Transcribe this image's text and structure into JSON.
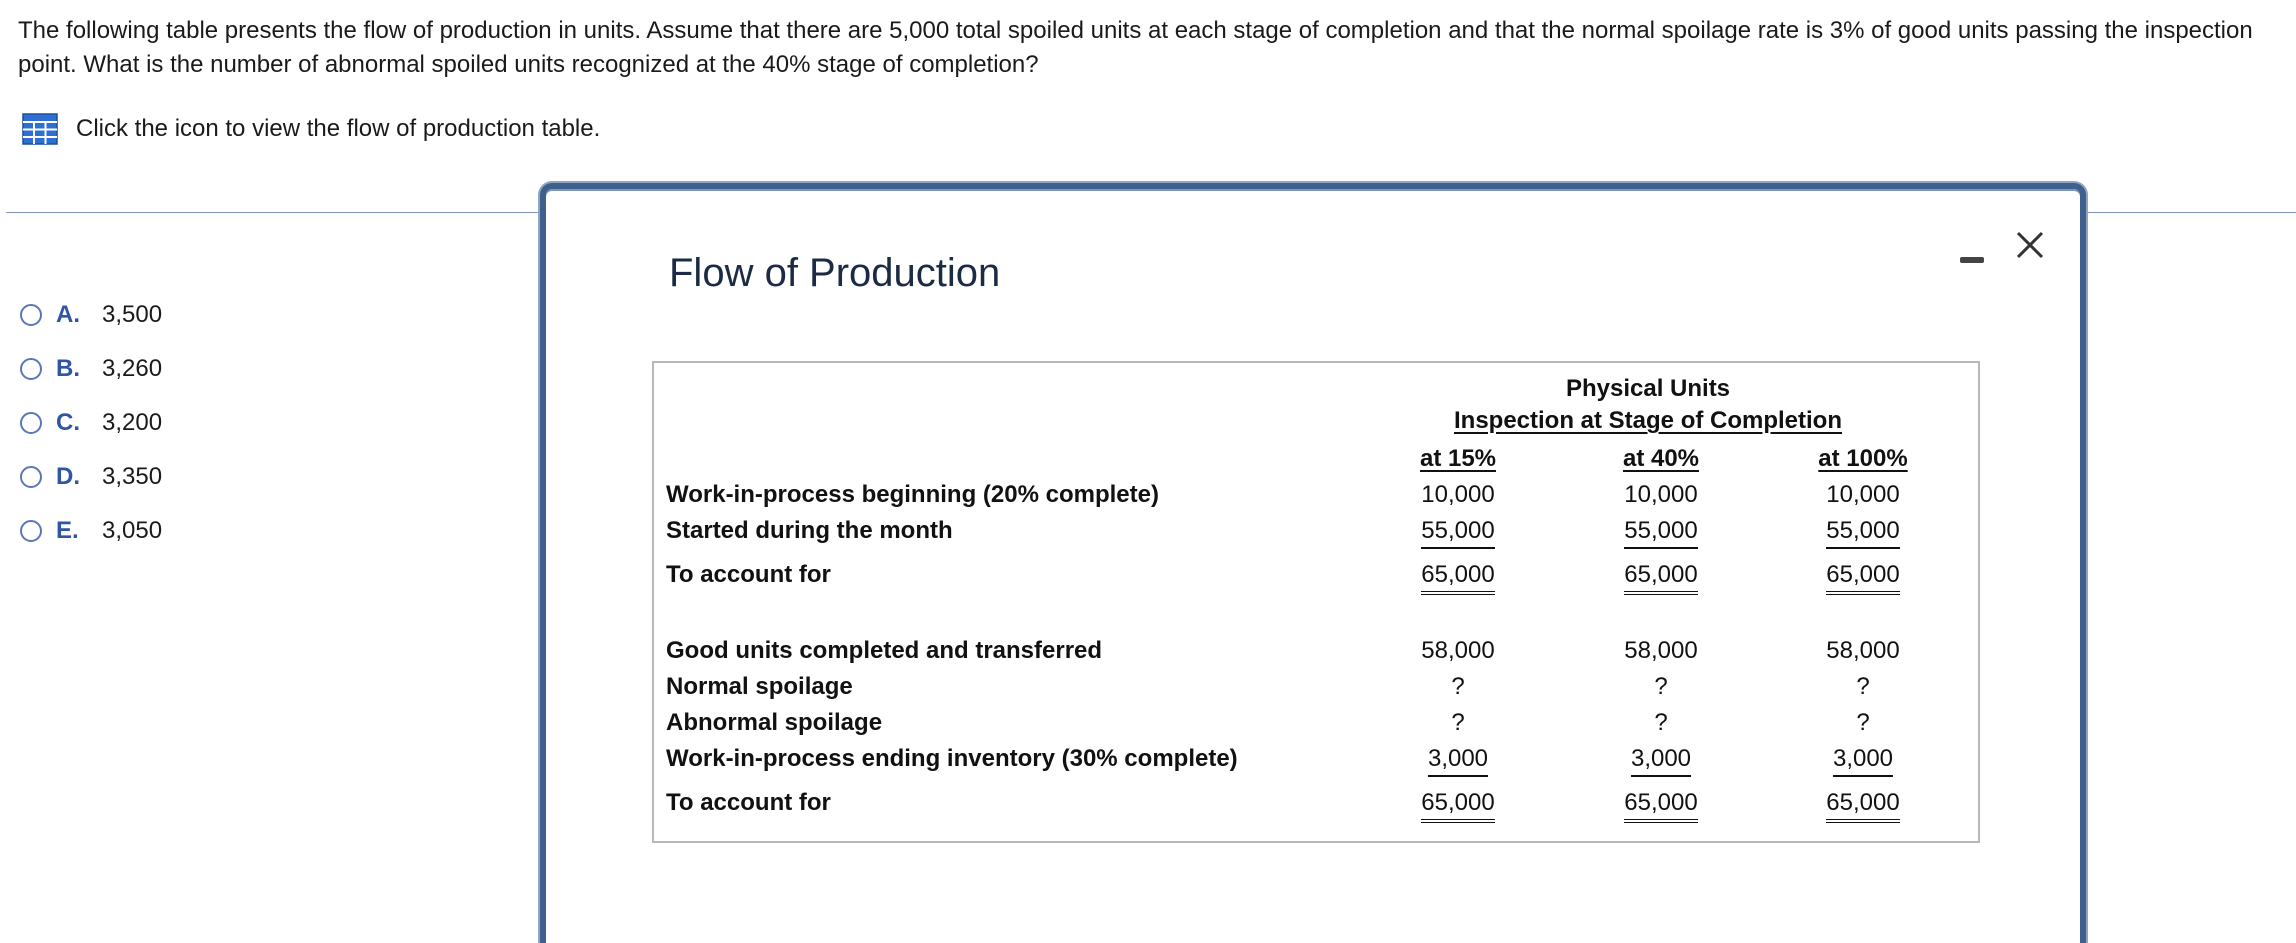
{
  "question": {
    "text": "The following table presents the flow of production in units. Assume that there are 5,000 total spoiled units at each stage of completion and that the normal spoilage rate is 3% of good units passing the inspection point. What is the number of abnormal spoiled units recognized at the 40% stage of completion?",
    "table_link_text": "Click the icon to view the flow of production table."
  },
  "options": [
    {
      "letter": "A.",
      "value": "3,500"
    },
    {
      "letter": "B.",
      "value": "3,260"
    },
    {
      "letter": "C.",
      "value": "3,200"
    },
    {
      "letter": "D.",
      "value": "3,350"
    },
    {
      "letter": "E.",
      "value": "3,050"
    }
  ],
  "modal": {
    "title": "Flow of Production",
    "table": {
      "header_line1": "Physical Units",
      "header_line2": "Inspection at Stage of Completion",
      "columns": [
        "at 15%",
        "at 40%",
        "at 100%"
      ],
      "rows": [
        {
          "label": "Work-in-process beginning (20% complete)",
          "values": [
            "10,000",
            "10,000",
            "10,000"
          ]
        },
        {
          "label": "Started during the month",
          "values": [
            "55,000",
            "55,000",
            "55,000"
          ]
        },
        {
          "label": "To account for",
          "values": [
            "65,000",
            "65,000",
            "65,000"
          ]
        },
        {
          "label": "Good units completed and transferred",
          "values": [
            "58,000",
            "58,000",
            "58,000"
          ]
        },
        {
          "label": "Normal spoilage",
          "values": [
            "?",
            "?",
            "?"
          ]
        },
        {
          "label": "Abnormal spoilage",
          "values": [
            "?",
            "?",
            "?"
          ]
        },
        {
          "label": "Work-in-process ending inventory (30% complete)",
          "values": [
            "3,000",
            "3,000",
            "3,000"
          ]
        },
        {
          "label": "To account for",
          "values": [
            "65,000",
            "65,000",
            "65,000"
          ]
        }
      ]
    }
  },
  "colors": {
    "accent": "#2f55a4",
    "modal_border": "#3f5f8c",
    "icon_blue": "#2f6fd1"
  },
  "icons": {
    "table": "table-grid-icon",
    "minimize": "minimize-icon",
    "close": "close-icon"
  }
}
